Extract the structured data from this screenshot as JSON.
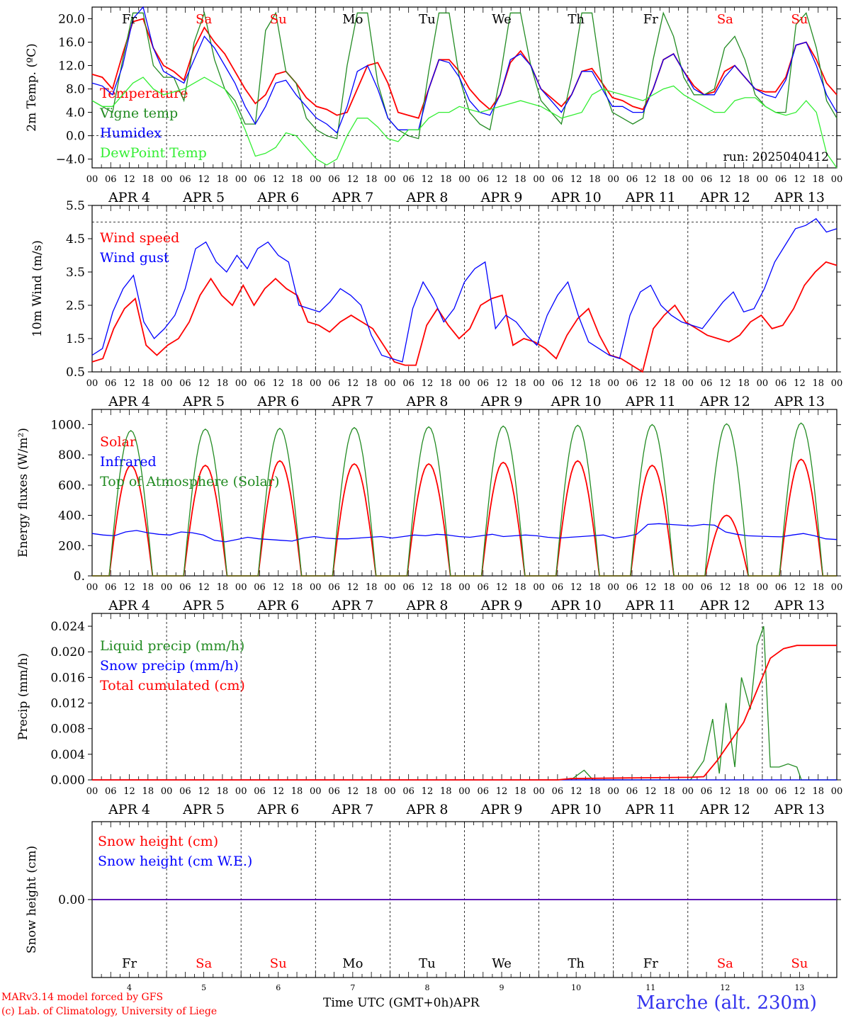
{
  "days": [
    "APR  4",
    "APR  5",
    "APR  6",
    "APR  7",
    "APR  8",
    "APR  9",
    "APR 10",
    "APR 11",
    "APR 12",
    "APR 13"
  ],
  "weekdays": [
    {
      "label": "Fr",
      "color": "#000000"
    },
    {
      "label": "Sa",
      "color": "#ff0000"
    },
    {
      "label": "Su",
      "color": "#ff0000"
    },
    {
      "label": "Mo",
      "color": "#000000"
    },
    {
      "label": "Tu",
      "color": "#000000"
    },
    {
      "label": "We",
      "color": "#000000"
    },
    {
      "label": "Th",
      "color": "#000000"
    },
    {
      "label": "Fr",
      "color": "#000000"
    },
    {
      "label": "Sa",
      "color": "#ff0000"
    },
    {
      "label": "Su",
      "color": "#ff0000"
    }
  ],
  "hour_ticks": [
    "00",
    "06",
    "12",
    "18"
  ],
  "bottom_day_numbers": [
    "4",
    "5",
    "6",
    "7",
    "8",
    "9",
    "10",
    "11",
    "12",
    "13"
  ],
  "footer": {
    "model": "MARv3.14 model forced by GFS",
    "lab": "(c) Lab. of Climatology, University of Liege",
    "xlabel": "Time UTC (GMT+0h)",
    "month": "APR",
    "station": "Marche (alt. 230m)"
  },
  "colors": {
    "red": "#ff0000",
    "green": "#228b22",
    "blue": "#0000ff",
    "lightgreen": "#33ee33"
  },
  "chart_data": [
    {
      "type": "line",
      "id": "temp",
      "ylabel": "2m Temp. (ºC)",
      "ylim": [
        -5.5,
        22
      ],
      "yticks": [
        20,
        16,
        12,
        8,
        4,
        0,
        -4
      ],
      "ytick_labels": [
        "20.0",
        "16.0",
        "12.0",
        "8.0",
        "4.0",
        "0.0",
        "−4.0"
      ],
      "annotation": "run: 2025040412",
      "x_hours_step": 6,
      "series": [
        {
          "name": "Temperature",
          "color": "red",
          "values": [
            10.5,
            10,
            8,
            14,
            19.5,
            20,
            15,
            12,
            11,
            9.5,
            15,
            18.5,
            16,
            14,
            11,
            8,
            5.5,
            7,
            10.5,
            11,
            9,
            6.5,
            5,
            4.5,
            3.5,
            4,
            8,
            12,
            12.5,
            9,
            4,
            3.5,
            3,
            8,
            13,
            13,
            11,
            8,
            6,
            4.5,
            7,
            12.5,
            14.5,
            12,
            8,
            6.5,
            5,
            7,
            11,
            11.5,
            9,
            6.5,
            6,
            5,
            4.5,
            8,
            13,
            14,
            11,
            8.5,
            7,
            7.5,
            11,
            12,
            10,
            8,
            7.5,
            7.5,
            10,
            15.5,
            16,
            13,
            9,
            7
          ]
        },
        {
          "name": "Vigne temp",
          "color": "green",
          "values": [
            6,
            5,
            4,
            13,
            21,
            21,
            12,
            10,
            10,
            6,
            16,
            21,
            13,
            8,
            6,
            2,
            2,
            18,
            21,
            11,
            9,
            3,
            1,
            0,
            -0.5,
            12,
            21,
            21,
            9,
            3,
            1,
            0,
            -0.5,
            11,
            21,
            21,
            10,
            4,
            2,
            1,
            10,
            21,
            21,
            12,
            6,
            4,
            2,
            10,
            21,
            21,
            9,
            4,
            3,
            2,
            3,
            13,
            21,
            17,
            10,
            7,
            7,
            8,
            15,
            17,
            13,
            7,
            5,
            4,
            4,
            19,
            21,
            15,
            6,
            3
          ]
        },
        {
          "name": "Humidex",
          "color": "blue",
          "values": [
            9,
            8.5,
            7,
            12,
            20,
            22,
            15,
            11,
            10,
            9,
            13,
            17,
            15,
            12,
            9,
            5,
            2,
            5,
            9,
            9.5,
            7,
            5,
            3,
            2,
            0.5,
            5,
            11,
            12,
            8,
            3,
            1,
            1,
            1,
            8,
            13,
            12.5,
            10,
            6,
            4,
            3.5,
            7,
            13,
            14,
            12,
            8,
            6,
            4,
            7,
            11,
            11,
            8,
            5,
            5,
            4,
            4,
            8,
            13,
            14,
            11,
            8,
            7,
            7,
            10,
            12,
            10,
            8,
            7,
            6.5,
            9.5,
            15.5,
            16,
            12,
            7,
            4
          ]
        },
        {
          "name": "DewPoint Temp",
          "color": "lightgreen",
          "values": [
            6,
            5,
            5,
            7,
            9,
            10,
            8,
            7,
            7.5,
            8,
            9,
            10,
            9,
            8,
            5,
            1,
            -3.5,
            -3,
            -2,
            0.5,
            0,
            -2,
            -4,
            -5,
            -4,
            0,
            3,
            3,
            1.5,
            -0.5,
            -1,
            1,
            1,
            3,
            4,
            4,
            5,
            4.5,
            4,
            4.5,
            5,
            5.5,
            6,
            5.5,
            5,
            4,
            3,
            3.5,
            4,
            7,
            8,
            7.5,
            7,
            6.5,
            6,
            7,
            8,
            8.5,
            7,
            6,
            5,
            4,
            4,
            6,
            6.5,
            6.5,
            5,
            4,
            3.5,
            4,
            6,
            4,
            -3,
            -5.5
          ]
        }
      ]
    },
    {
      "type": "line",
      "id": "wind",
      "ylabel": "10m Wind (m/s)",
      "ylim": [
        0.5,
        5.5
      ],
      "yticks": [
        5.5,
        4.5,
        3.5,
        2.5,
        1.5,
        0.5
      ],
      "ytick_labels": [
        "5.5",
        "4.5",
        "3.5",
        "2.5",
        "1.5",
        "0.5"
      ],
      "x_hours_step": 6,
      "series": [
        {
          "name": "Wind speed",
          "color": "red",
          "values": [
            0.8,
            0.9,
            1.8,
            2.4,
            2.7,
            1.3,
            1,
            1.3,
            1.5,
            2,
            2.8,
            3.3,
            2.8,
            2.5,
            3.1,
            2.5,
            3,
            3.3,
            3,
            2.8,
            2,
            1.9,
            1.7,
            2,
            2.2,
            2,
            1.8,
            1.3,
            0.8,
            0.7,
            0.7,
            1.9,
            2.4,
            1.9,
            1.5,
            1.8,
            2.5,
            2.7,
            2.8,
            1.3,
            1.5,
            1.4,
            1.2,
            0.9,
            1.6,
            2.1,
            2.4,
            1.6,
            1,
            0.9,
            0.7,
            0.5,
            1.8,
            2.2,
            2.5,
            2,
            1.8,
            1.6,
            1.5,
            1.4,
            1.6,
            2,
            2.2,
            1.8,
            1.9,
            2.4,
            3.1,
            3.5,
            3.8,
            3.7
          ]
        },
        {
          "name": "Wind gust",
          "color": "blue",
          "values": [
            1,
            1.2,
            2.3,
            3,
            3.4,
            2,
            1.5,
            1.8,
            2.2,
            3,
            4.2,
            4.4,
            3.8,
            3.5,
            4,
            3.6,
            4.2,
            4.4,
            4,
            3.8,
            2.5,
            2.4,
            2.3,
            2.6,
            3,
            2.8,
            2.5,
            1.6,
            1,
            0.9,
            0.8,
            2.4,
            3.2,
            2.7,
            2,
            2.4,
            3.2,
            3.6,
            3.8,
            1.8,
            2.2,
            2,
            1.6,
            1.3,
            2.2,
            2.8,
            3.2,
            2.2,
            1.4,
            1.2,
            1,
            0.9,
            2.2,
            2.9,
            3.1,
            2.5,
            2.2,
            2,
            1.9,
            1.8,
            2.2,
            2.6,
            2.9,
            2.3,
            2.4,
            3,
            3.8,
            4.3,
            4.8,
            4.9,
            5.1,
            4.7,
            4.8
          ]
        }
      ],
      "ref_line": 5.0
    },
    {
      "type": "line",
      "id": "energy",
      "ylabel": "Energy fluxes (W/m²)",
      "ylim": [
        0,
        1100
      ],
      "yticks": [
        1000,
        800,
        600,
        400,
        200,
        0
      ],
      "ytick_labels": [
        "1000.",
        "800.",
        "600.",
        "400.",
        "200.",
        "0."
      ],
      "x_hours_step": 6,
      "series": [
        {
          "name": "Solar",
          "color": "red",
          "peaks": [
            730,
            730,
            760,
            740,
            740,
            750,
            760,
            730,
            400,
            770
          ]
        },
        {
          "name": "Infrared",
          "color": "blue",
          "values": [
            280,
            270,
            265,
            290,
            300,
            285,
            275,
            270,
            290,
            285,
            270,
            235,
            225,
            240,
            255,
            245,
            240,
            235,
            230,
            250,
            260,
            250,
            245,
            245,
            250,
            255,
            260,
            250,
            260,
            270,
            265,
            275,
            270,
            260,
            255,
            265,
            275,
            260,
            265,
            270,
            265,
            255,
            250,
            255,
            260,
            265,
            270,
            250,
            260,
            275,
            340,
            345,
            340,
            335,
            330,
            340,
            335,
            290,
            275,
            265,
            262,
            260,
            258,
            270,
            280,
            265,
            245,
            240
          ]
        },
        {
          "name": "Top of Atmosphere (Solar)",
          "color": "green",
          "peaks": [
            960,
            970,
            975,
            980,
            985,
            990,
            995,
            1000,
            1005,
            1010
          ]
        }
      ]
    },
    {
      "type": "line",
      "id": "precip",
      "ylabel": "Precip (mm/h)",
      "ylim": [
        0,
        0.026
      ],
      "yticks": [
        0.024,
        0.02,
        0.016,
        0.012,
        0.008,
        0.004,
        0
      ],
      "ytick_labels": [
        "0.024",
        "0.020",
        "0.016",
        "0.012",
        "0.008",
        "0.004",
        "0.000"
      ],
      "x_hours_step": 6,
      "series": [
        {
          "name": "Liquid precip (mm/h)",
          "color": "green",
          "points": [
            [
              216,
              0
            ],
            [
              222,
              0.0015
            ],
            [
              226,
              0
            ],
            [
              270,
              0
            ],
            [
              276,
              0.003
            ],
            [
              280,
              0.0095
            ],
            [
              283,
              0.001
            ],
            [
              286,
              0.012
            ],
            [
              290,
              0.002
            ],
            [
              293,
              0.016
            ],
            [
              297,
              0.011
            ],
            [
              300,
              0.021
            ],
            [
              303,
              0.024
            ],
            [
              306,
              0.002
            ],
            [
              310,
              0.002
            ],
            [
              314,
              0.0025
            ],
            [
              318,
              0.002
            ],
            [
              320,
              0
            ],
            [
              336,
              0
            ]
          ]
        },
        {
          "name": "Snow precip (mm/h)",
          "color": "blue",
          "points": [
            [
              0,
              0
            ],
            [
              336,
              0
            ]
          ]
        },
        {
          "name": "Total cumulated (cm)",
          "color": "red",
          "points": [
            [
              0,
              0
            ],
            [
              210,
              0
            ],
            [
              216,
              0.0002
            ],
            [
              240,
              0.0003
            ],
            [
              270,
              0.0004
            ],
            [
              276,
              0.0005
            ],
            [
              282,
              0.003
            ],
            [
              288,
              0.006
            ],
            [
              294,
              0.009
            ],
            [
              300,
              0.014
            ],
            [
              306,
              0.019
            ],
            [
              312,
              0.0205
            ],
            [
              318,
              0.021
            ],
            [
              336,
              0.021
            ]
          ]
        }
      ]
    },
    {
      "type": "line",
      "id": "snow",
      "ylabel": "Snow height (cm)",
      "ylim": [
        -1,
        1
      ],
      "yticks": [
        0
      ],
      "ytick_labels": [
        "0.00"
      ],
      "series": [
        {
          "name": "Snow height (cm)",
          "color": "red",
          "points": [
            [
              0,
              0
            ],
            [
              336,
              0
            ]
          ]
        },
        {
          "name": "Snow height (cm W.E.)",
          "color": "blue",
          "points": [
            [
              0,
              0
            ],
            [
              336,
              0
            ]
          ]
        }
      ]
    }
  ]
}
